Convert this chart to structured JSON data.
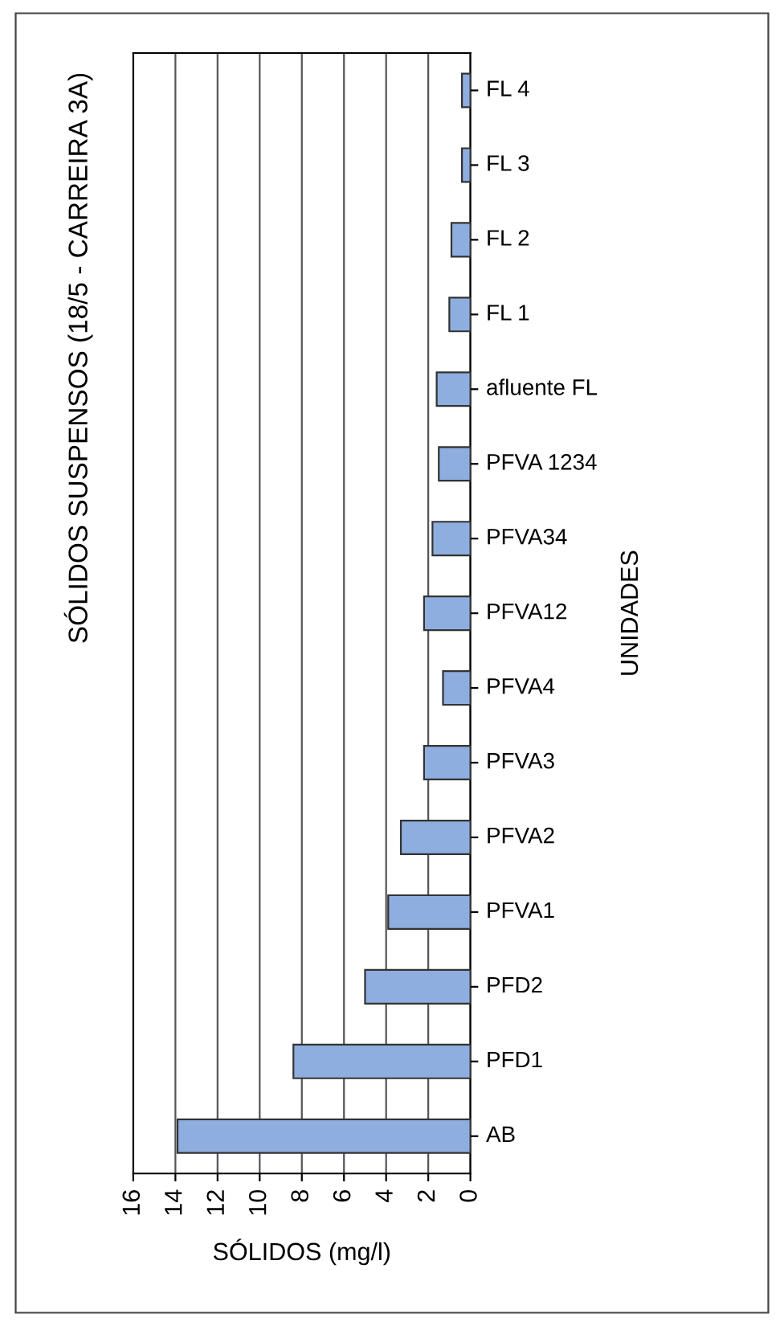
{
  "chart_data": {
    "type": "bar",
    "orientation": "horizontal",
    "title": "SÓLIDOS SUSPENSOS (18/5 - CARREIRA 3A)",
    "xlabel": "SÓLIDOS (mg/l)",
    "ylabel": "UNIDADES",
    "categories": [
      "FL 4",
      "FL 3",
      "FL 2",
      "FL 1",
      "afluente FL",
      "PFVA 1234",
      "PFVA34",
      "PFVA12",
      "PFVA4",
      "PFVA3",
      "PFVA2",
      "PFVA1",
      "PFD2",
      "PFD1",
      "AB"
    ],
    "values": [
      0.4,
      0.4,
      0.9,
      1.0,
      1.6,
      1.5,
      1.8,
      2.2,
      1.3,
      2.2,
      3.3,
      3.9,
      5.0,
      8.4,
      13.9
    ],
    "color": "#8faee0",
    "xlim": [
      16,
      0
    ],
    "xticks": [
      16,
      14,
      12,
      10,
      8,
      6,
      4,
      2,
      0
    ],
    "grid": "x",
    "legend": false
  }
}
